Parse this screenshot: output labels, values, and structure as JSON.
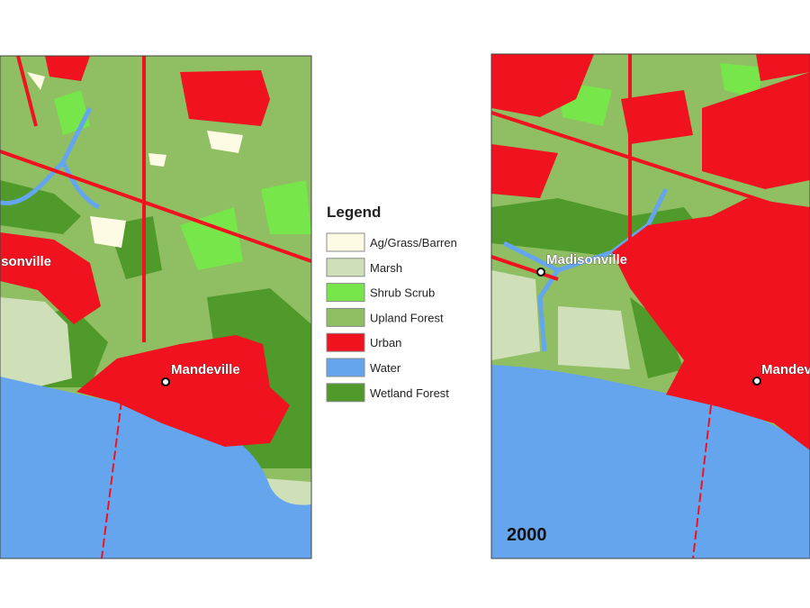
{
  "legend": {
    "title": "Legend",
    "items": [
      {
        "label": "Ag/Grass/Barren",
        "color": "#fdfbe3"
      },
      {
        "label": "Marsh",
        "color": "#cfe0b8"
      },
      {
        "label": "Shrub Scrub",
        "color": "#76e64a"
      },
      {
        "label": "Upland Forest",
        "color": "#8fbe63"
      },
      {
        "label": "Urban",
        "color": "#f0121e"
      },
      {
        "label": "Water",
        "color": "#64a5ee"
      },
      {
        "label": "Wetland Forest",
        "color": "#4f9a2b"
      }
    ]
  },
  "maps": [
    {
      "cities": [
        "Madisonville",
        "Mandeville"
      ]
    },
    {
      "cities": [
        "Madisonville",
        "Mandeville"
      ],
      "year": "2000"
    }
  ]
}
